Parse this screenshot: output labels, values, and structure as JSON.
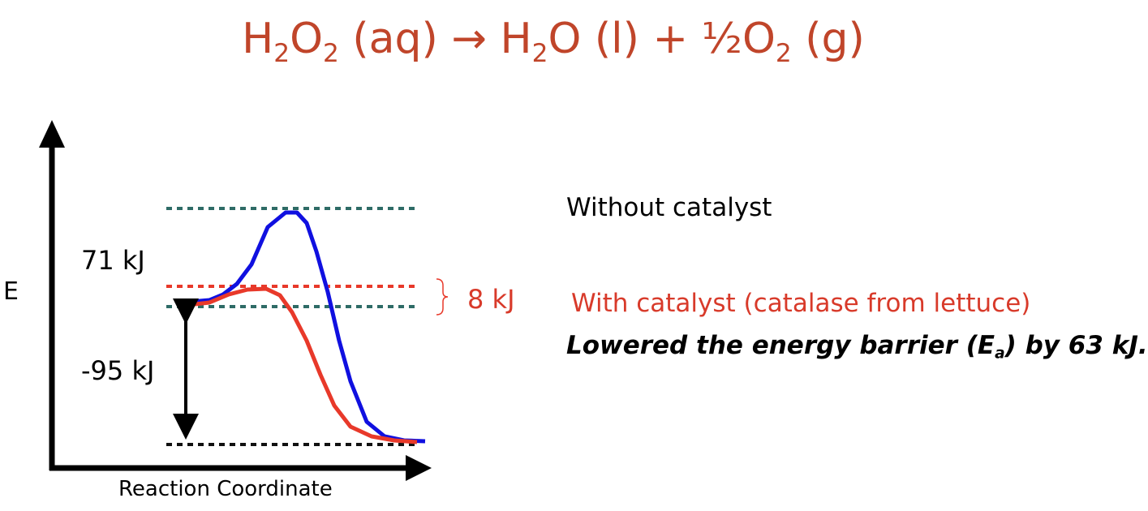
{
  "equation": {
    "reactant": "H",
    "reactant_sub1": "2",
    "reactant_o": "O",
    "reactant_sub2": "2",
    "reactant_state": " (aq) ",
    "arrow": "→",
    "product1": " H",
    "product1_sub": "2",
    "product1_rest": "O (l) + ½O",
    "product2_sub": "2",
    "product2_state": " (g)"
  },
  "axes": {
    "y_label": "E",
    "x_label": "Reaction Coordinate"
  },
  "annotations": {
    "activation_uncatalyzed": "71 kJ",
    "enthalpy_change": "-95 kJ",
    "activation_catalyzed": "8 kJ",
    "without_catalyst": "Without catalyst",
    "with_catalyst": "With catalyst (catalase from lettuce)",
    "lowered_pre": "Lowered the energy barrier (E",
    "lowered_sub": "a",
    "lowered_post": ") by 63 kJ."
  },
  "colors": {
    "uncatalyzed_curve": "#1010e0",
    "catalyzed_curve": "#e8392a",
    "teal_dotted": "#2e6b66",
    "red_dotted": "#e8392a",
    "title": "#c0452a"
  }
}
